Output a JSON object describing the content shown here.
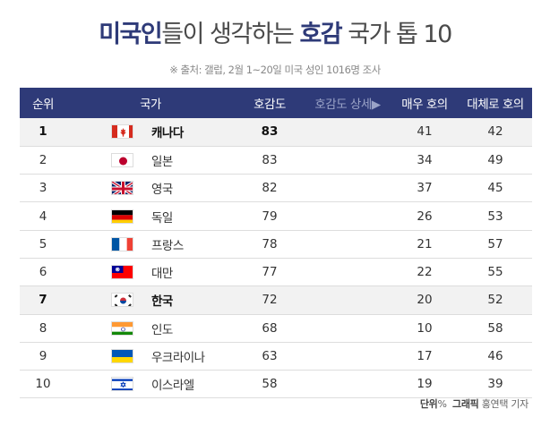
{
  "title": {
    "part1": "미국인",
    "part2": "들이 생각하는 ",
    "part3": "호감",
    "part4": " 국가 톱 10"
  },
  "source": "※ 출처: 갤럽, 2월 1~20일 미국 성인 1016명 조사",
  "headers": {
    "rank": "순위",
    "country": "국가",
    "favorable": "호감도",
    "detail": "호감도 상세▶",
    "very": "매우 호의",
    "mostly": "대체로 호의"
  },
  "colors": {
    "header_bg": "#2e3a78",
    "highlight_row": "#f2f2f2"
  },
  "rows": [
    {
      "rank": "1",
      "country": "캐나다",
      "flag": "canada-flag-icon",
      "score": "83",
      "very": "41",
      "mostly": "42",
      "highlight": true
    },
    {
      "rank": "2",
      "country": "일본",
      "flag": "japan-flag-icon",
      "score": "83",
      "very": "34",
      "mostly": "49",
      "highlight": false
    },
    {
      "rank": "3",
      "country": "영국",
      "flag": "uk-flag-icon",
      "score": "82",
      "very": "37",
      "mostly": "45",
      "highlight": false
    },
    {
      "rank": "4",
      "country": "독일",
      "flag": "germany-flag-icon",
      "score": "79",
      "very": "26",
      "mostly": "53",
      "highlight": false
    },
    {
      "rank": "5",
      "country": "프랑스",
      "flag": "france-flag-icon",
      "score": "78",
      "very": "21",
      "mostly": "57",
      "highlight": false
    },
    {
      "rank": "6",
      "country": "대만",
      "flag": "taiwan-flag-icon",
      "score": "77",
      "very": "22",
      "mostly": "55",
      "highlight": false
    },
    {
      "rank": "7",
      "country": "한국",
      "flag": "korea-flag-icon",
      "score": "72",
      "very": "20",
      "mostly": "52",
      "highlight": true
    },
    {
      "rank": "8",
      "country": "인도",
      "flag": "india-flag-icon",
      "score": "68",
      "very": "10",
      "mostly": "58",
      "highlight": false
    },
    {
      "rank": "9",
      "country": "우크라이나",
      "flag": "ukraine-flag-icon",
      "score": "63",
      "very": "17",
      "mostly": "46",
      "highlight": false
    },
    {
      "rank": "10",
      "country": "이스라엘",
      "flag": "israel-flag-icon",
      "score": "58",
      "very": "19",
      "mostly": "39",
      "highlight": false
    }
  ],
  "footer": {
    "unit_label": "단위",
    "unit_value": "%",
    "graphic_label": "그래픽",
    "graphic_value": "홍연택 기자"
  }
}
